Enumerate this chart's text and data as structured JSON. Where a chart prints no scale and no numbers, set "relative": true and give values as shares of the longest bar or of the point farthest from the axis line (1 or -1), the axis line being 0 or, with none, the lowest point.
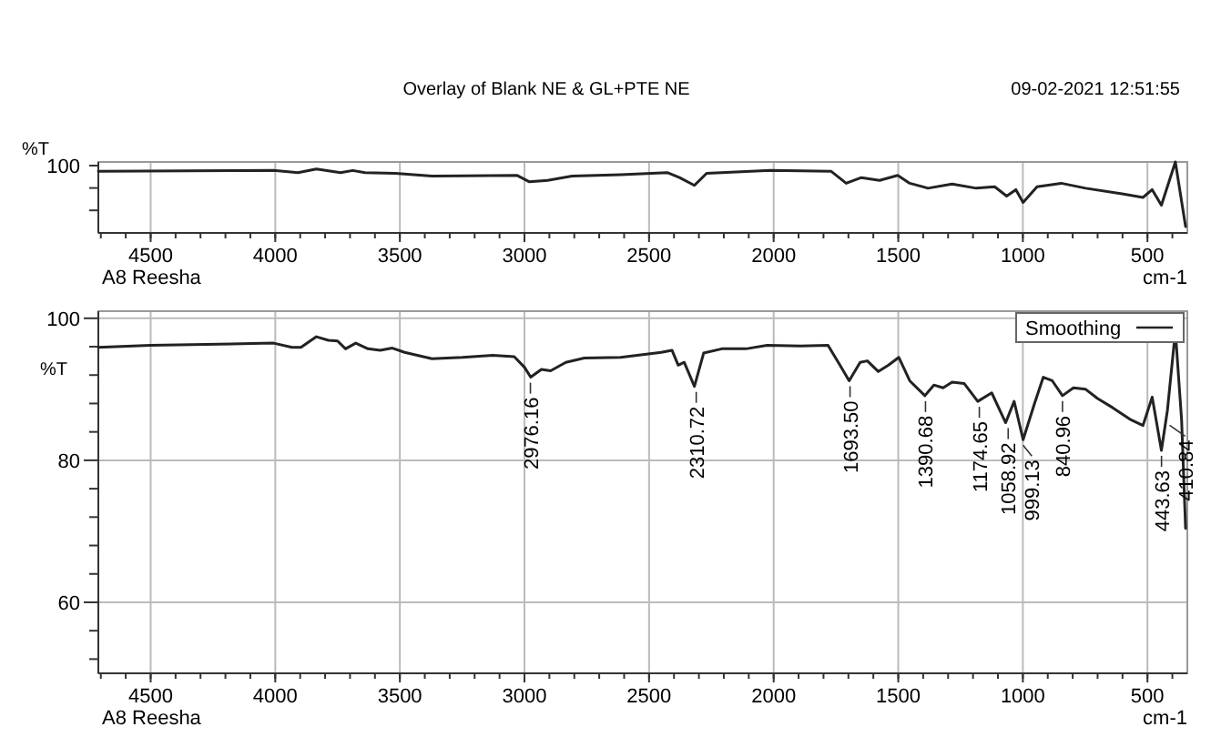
{
  "chart_data": [
    {
      "type": "line",
      "title": "Overlay of Blank NE & GL+PTE NE",
      "subtitle": "09-02-2021 12:51:55",
      "relative": true,
      "xlabel": "cm-1",
      "ylabel": "%T",
      "annotations": [
        "100",
        "A8 Reesha"
      ],
      "grid": "x",
      "xlim": [
        4710,
        340
      ],
      "xticks": [
        4500,
        4000,
        3500,
        3000,
        2500,
        2000,
        1500,
        1000,
        500
      ],
      "series": [
        {
          "color": "#222222",
          "x": [
            4710,
            4007,
            3909,
            3835,
            3738,
            3689,
            3640,
            3518,
            3371,
            3029,
            2980,
            2907,
            2809,
            2614,
            2427,
            2378,
            2318,
            2269,
            2013,
            1770,
            1709,
            1648,
            1575,
            1502,
            1454,
            1381,
            1284,
            1187,
            1113,
            1065,
            1028,
            999,
            943,
            846,
            748,
            602,
            518,
            481,
            444,
            388,
            347
          ],
          "values": [
            0.87,
            0.88,
            0.85,
            0.9,
            0.85,
            0.88,
            0.85,
            0.84,
            0.8,
            0.81,
            0.72,
            0.74,
            0.8,
            0.82,
            0.85,
            0.78,
            0.67,
            0.84,
            0.88,
            0.87,
            0.7,
            0.78,
            0.74,
            0.81,
            0.7,
            0.63,
            0.69,
            0.63,
            0.65,
            0.52,
            0.61,
            0.43,
            0.65,
            0.7,
            0.63,
            0.55,
            0.5,
            0.61,
            0.39,
            1.0,
            0.09
          ]
        }
      ]
    },
    {
      "type": "line",
      "xlabel": "cm-1",
      "ylabel": "%T",
      "legend": "top right",
      "grid": true,
      "xlim": [
        4710,
        340
      ],
      "xticks": [
        4500,
        4000,
        3500,
        3000,
        2500,
        2000,
        1500,
        1000,
        500
      ],
      "ylim": [
        50,
        101
      ],
      "yticks": [
        {
          "value": 52,
          "label": null
        },
        {
          "value": 56,
          "label": null
        },
        60,
        {
          "value": 64,
          "label": null
        },
        {
          "value": 68,
          "label": null
        },
        {
          "value": 72,
          "label": null
        },
        {
          "value": 76,
          "label": null
        },
        80,
        {
          "value": 84,
          "label": null
        },
        {
          "value": 88,
          "label": null
        },
        {
          "value": 92,
          "label": null
        },
        {
          "value": 96,
          "label": null
        },
        100
      ],
      "annotations": [
        "A8 Reesha",
        {
          "text": "2976.16",
          "x": 2976.16,
          "y": 91.7
        },
        {
          "text": "2310.72",
          "x": 2310.72,
          "y": 90.4
        },
        {
          "text": "1693.50",
          "x": 1693.5,
          "y": 91.2
        },
        {
          "text": "1390.68",
          "x": 1390.68,
          "y": 89.1
        },
        {
          "text": "1174.65",
          "x": 1174.65,
          "y": 88.3
        },
        {
          "text": "1058.92",
          "x": 1058.92,
          "y": 85.3
        },
        {
          "text": "999.13",
          "x": 999.13,
          "y": 82.9
        },
        {
          "text": "840.96",
          "x": 840.96,
          "y": 89.1
        },
        {
          "text": "443.63",
          "x": 443.63,
          "y": 81.4
        },
        {
          "text": "410.84",
          "x": 410.84,
          "y": 85.7
        }
      ],
      "series": [
        {
          "name": "Smoothing",
          "color": "#222222",
          "x": [
            4710,
            4500,
            4007,
            3933,
            3897,
            3835,
            3787,
            3750,
            3718,
            3677,
            3628,
            3579,
            3530,
            3481,
            3371,
            3249,
            3127,
            3041,
            3000,
            2975,
            2932,
            2895,
            2834,
            2760,
            2614,
            2451,
            2408,
            2383,
            2359,
            2318,
            2281,
            2208,
            2111,
            2026,
            1892,
            1782,
            1734,
            1697,
            1653,
            1624,
            1580,
            1539,
            1498,
            1454,
            1393,
            1357,
            1320,
            1284,
            1235,
            1181,
            1125,
            1069,
            1035,
            999,
            955,
            918,
            882,
            841,
            797,
            748,
            700,
            639,
            566,
            518,
            481,
            444,
            420,
            388,
            363,
            347
          ],
          "values": [
            95.9,
            96.2,
            96.5,
            95.9,
            95.9,
            97.4,
            96.9,
            96.8,
            95.7,
            96.5,
            95.7,
            95.5,
            95.8,
            95.2,
            94.3,
            94.5,
            94.8,
            94.6,
            93.1,
            91.7,
            92.8,
            92.6,
            93.8,
            94.4,
            94.5,
            95.2,
            95.5,
            93.4,
            93.8,
            90.4,
            95.1,
            95.7,
            95.7,
            96.2,
            96.1,
            96.2,
            93.4,
            91.2,
            93.8,
            94.0,
            92.5,
            93.4,
            94.5,
            91.2,
            89.1,
            90.6,
            90.2,
            91.0,
            90.8,
            88.3,
            89.5,
            85.3,
            88.3,
            82.9,
            87.8,
            91.7,
            91.2,
            89.1,
            90.2,
            90.0,
            88.7,
            87.4,
            85.7,
            84.9,
            88.9,
            81.4,
            87.0,
            98.2,
            85.7,
            70.4
          ]
        }
      ]
    }
  ]
}
